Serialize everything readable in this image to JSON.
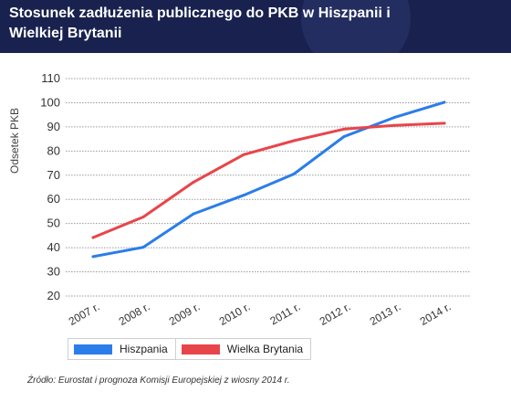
{
  "header": {
    "title": "Stosunek zadłużenia publicznego do PKB w Hiszpanii i Wielkiej Brytanii"
  },
  "source": "Źródło: Eurostat i prognoza Komisji Europejskiej z wiosny 2014 r.",
  "chart_data": {
    "type": "line",
    "title": "Stosunek zadłużenia publicznego do PKB w Hiszpanii i Wielkiej Brytanii",
    "ylabel": "Odsetek PKB",
    "xlabel": "",
    "categories": [
      "2007 r.",
      "2008 r.",
      "2009 r.",
      "2010 r.",
      "2011 r.",
      "2012 r.",
      "2013 r.",
      "2014 r."
    ],
    "ylim": [
      20,
      110
    ],
    "yticks": [
      20,
      30,
      40,
      50,
      60,
      70,
      80,
      90,
      100,
      110
    ],
    "grid": true,
    "legend_position": "bottom-left",
    "series": [
      {
        "name": "Hiszpania",
        "color": "#2b7de9",
        "values": [
          36.3,
          40.2,
          54.0,
          61.7,
          70.5,
          86.0,
          93.9,
          100.2
        ]
      },
      {
        "name": "Wielka Brytania",
        "color": "#e8454a",
        "values": [
          44.2,
          52.7,
          67.1,
          78.5,
          84.3,
          89.1,
          90.6,
          91.5
        ]
      }
    ]
  }
}
